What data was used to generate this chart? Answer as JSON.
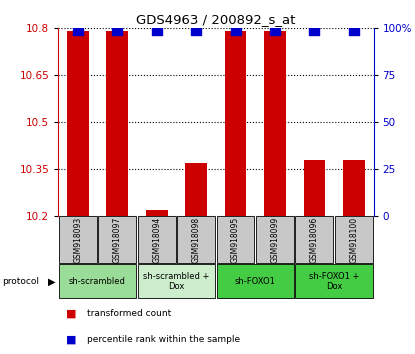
{
  "title": "GDS4963 / 200892_s_at",
  "samples": [
    "GSM918093",
    "GSM918097",
    "GSM918094",
    "GSM918098",
    "GSM918095",
    "GSM918099",
    "GSM918096",
    "GSM918100"
  ],
  "transformed_count": [
    10.79,
    10.79,
    10.22,
    10.37,
    10.79,
    10.79,
    10.38,
    10.38
  ],
  "percentile_rank": [
    99,
    99,
    99,
    99,
    99,
    99,
    99,
    99
  ],
  "ylim_left": [
    10.2,
    10.8
  ],
  "ylim_right": [
    0,
    100
  ],
  "yticks_left": [
    10.2,
    10.35,
    10.5,
    10.65,
    10.8
  ],
  "yticks_right": [
    0,
    25,
    50,
    75,
    100
  ],
  "ytick_labels_left": [
    "10.2",
    "10.35",
    "10.5",
    "10.65",
    "10.8"
  ],
  "ytick_labels_right": [
    "0",
    "25",
    "50",
    "75",
    "100%"
  ],
  "bar_color": "#cc0000",
  "dot_color": "#0000cc",
  "groups": [
    {
      "label": "sh-scrambled",
      "start": 0,
      "end": 1,
      "color": "#99dd99"
    },
    {
      "label": "sh-scrambled +\nDox",
      "start": 2,
      "end": 3,
      "color": "#cceecc"
    },
    {
      "label": "sh-FOXO1",
      "start": 4,
      "end": 5,
      "color": "#44cc44"
    },
    {
      "label": "sh-FOXO1 +\nDox",
      "start": 6,
      "end": 7,
      "color": "#44cc44"
    }
  ],
  "left_axis_color": "#cc0000",
  "right_axis_color": "#0000cc",
  "bar_width": 0.55,
  "dot_size": 55
}
